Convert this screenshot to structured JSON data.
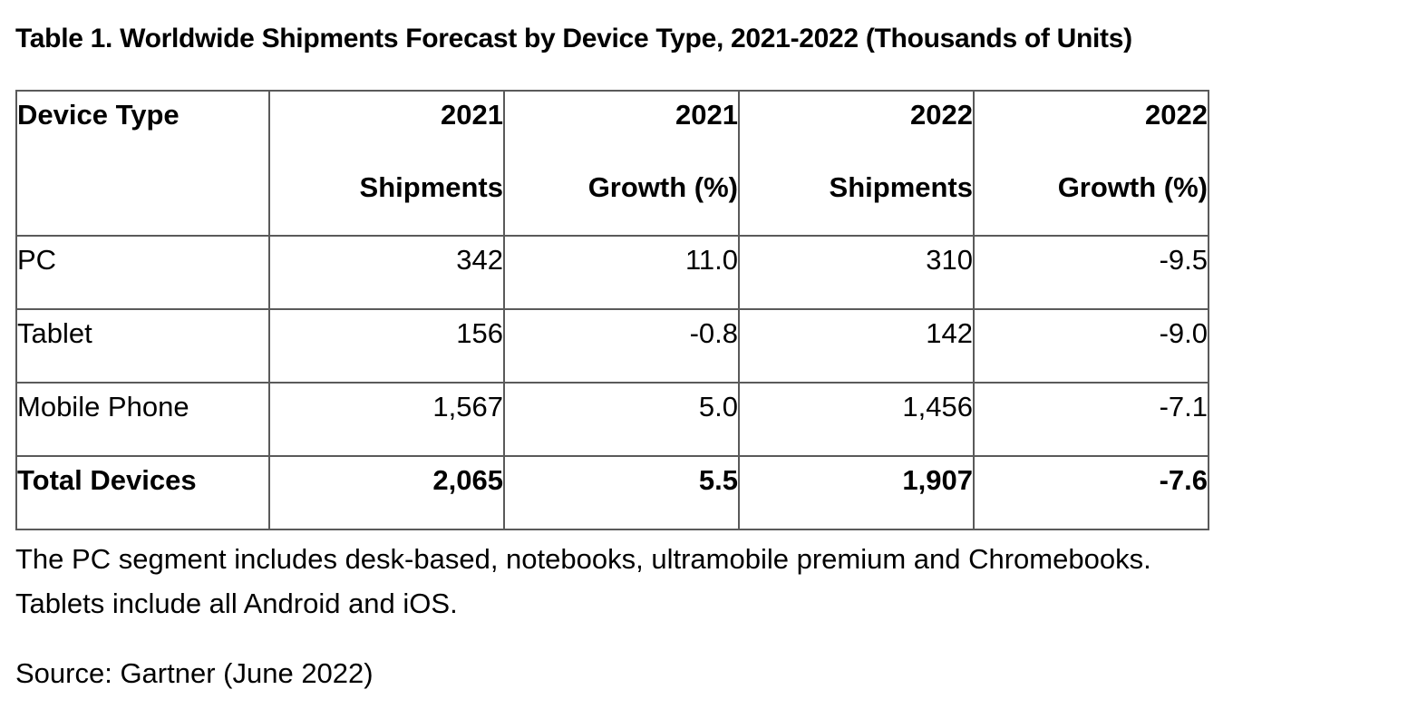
{
  "title": "Table 1. Worldwide Shipments Forecast by Device Type, 2021-2022 (Thousands of Units)",
  "table": {
    "headers": [
      {
        "line1": "Device Type",
        "line2": ""
      },
      {
        "line1": "2021",
        "line2": "Shipments"
      },
      {
        "line1": "2021",
        "line2": "Growth (%)"
      },
      {
        "line1": "2022",
        "line2": "Shipments"
      },
      {
        "line1": "2022",
        "line2": "Growth (%)"
      }
    ],
    "rows": [
      [
        "PC",
        "342",
        "11.0",
        "310",
        "-9.5"
      ],
      [
        "Tablet",
        "156",
        "-0.8",
        "142",
        "-9.0"
      ],
      [
        "Mobile Phone",
        "1,567",
        "5.0",
        "1,456",
        "-7.1"
      ]
    ],
    "total": [
      "Total Devices",
      "2,065",
      "5.5",
      "1,907",
      "-7.6"
    ]
  },
  "notes": {
    "line1": "The PC segment includes desk-based, notebooks, ultramobile premium and Chromebooks.",
    "line2": "Tablets include all Android and iOS.",
    "source": "Source: Gartner (June 2022)"
  }
}
